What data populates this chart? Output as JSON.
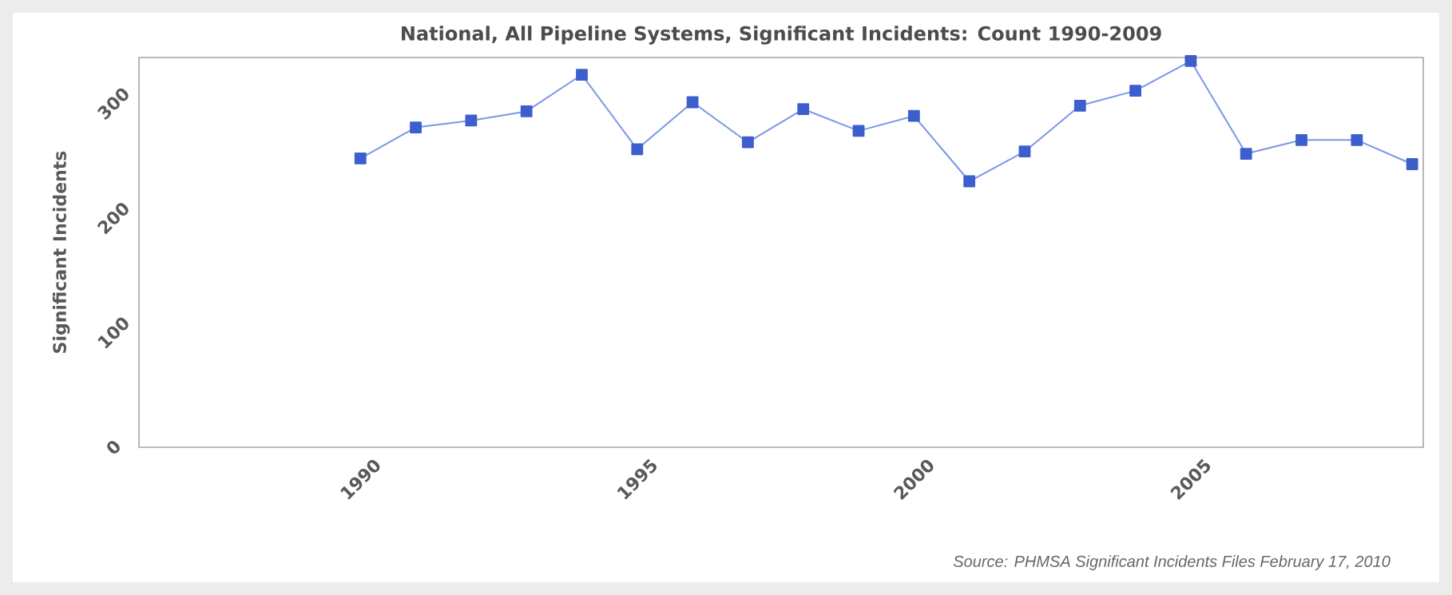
{
  "chart_data": {
    "type": "line",
    "title": "National, All Pipeline Systems, Significant Incidents: Count 1990-2009",
    "ylabel": "Significant Incidents",
    "annotations": [
      "Source: PHMSA Significant Incidents Files February 17, 2010"
    ],
    "x": [
      1990,
      1991,
      1992,
      1993,
      1994,
      1995,
      1996,
      1997,
      1998,
      1999,
      2000,
      2001,
      2002,
      2003,
      2004,
      2005,
      2006,
      2007,
      2008,
      2009
    ],
    "series": [
      {
        "color": "#7b96e8",
        "values": [
          252,
          279,
          285,
          293,
          325,
          260,
          301,
          266,
          295,
          276,
          289,
          232,
          258,
          298,
          311,
          337,
          256,
          268,
          268,
          247
        ]
      }
    ],
    "xlim": [
      1986,
      2009.2
    ],
    "ylim": [
      0,
      340
    ],
    "xticks": [
      1990,
      1995,
      2000,
      2005
    ],
    "yticks": [
      0,
      100,
      200,
      300
    ],
    "grid": false,
    "marker": "square",
    "line_style": "solid"
  }
}
